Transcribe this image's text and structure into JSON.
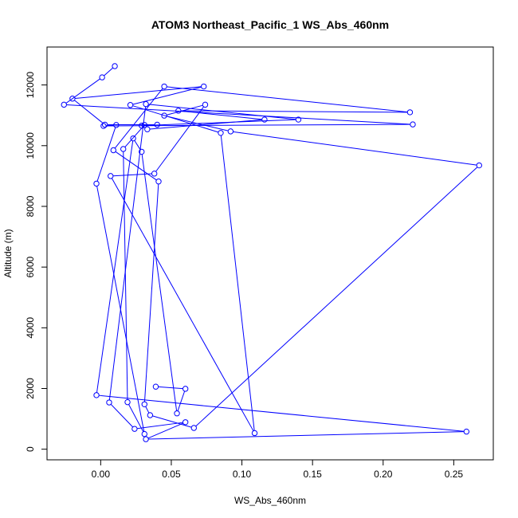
{
  "chart_data": {
    "type": "line",
    "title": "ATOM3 Northeast_Pacific_1 WS_Abs_460nm",
    "xlabel": "WS_Abs_460nm",
    "ylabel": "Altitude (m)",
    "xlim": [
      -0.038,
      0.278
    ],
    "ylim": [
      -350,
      13250
    ],
    "xticks": [
      0.0,
      0.05,
      0.1,
      0.15,
      0.2,
      0.25
    ],
    "xtick_labels": [
      "0.00",
      "0.05",
      "0.10",
      "0.15",
      "0.20",
      "0.25"
    ],
    "yticks": [
      0,
      2000,
      4000,
      6000,
      8000,
      10000,
      12000
    ],
    "ytick_labels": [
      "0",
      "2000",
      "4000",
      "6000",
      "8000",
      "10000",
      "12000"
    ],
    "grid": false,
    "line_color": "#0000ff",
    "marker": "open-circle",
    "series": [
      {
        "x": [
          0.01,
          0.001,
          -0.026,
          0.221,
          0.002,
          0.011,
          -0.003,
          0.031,
          0.019,
          0.016,
          0.031,
          0.04,
          0.003,
          -0.02,
          0.073,
          0.021,
          0.085,
          0.109,
          0.007,
          0.038,
          0.074,
          0.045,
          0.092,
          0.268,
          0.066,
          0.035,
          0.031,
          0.041,
          0.009,
          0.045,
          0.219,
          0.055,
          0.116,
          0.033,
          0.029,
          0.14,
          0.032,
          0.006,
          0.024,
          0.06,
          0.032,
          0.259,
          -0.003,
          0.023,
          0.029,
          0.054,
          0.06,
          0.039
        ],
        "y": [
          12620,
          12250,
          11350,
          10700,
          10650,
          10680,
          8750,
          500,
          1550,
          9890,
          10680,
          10690,
          10690,
          11550,
          11950,
          11340,
          10420,
          530,
          9000,
          9080,
          11350,
          10990,
          10470,
          9350,
          700,
          1120,
          1480,
          8820,
          9850,
          11950,
          11100,
          11150,
          10860,
          10540,
          10660,
          10860,
          11370,
          1540,
          670,
          890,
          330,
          580,
          1780,
          10240,
          9800,
          1180,
          1990,
          2060
        ]
      }
    ]
  }
}
